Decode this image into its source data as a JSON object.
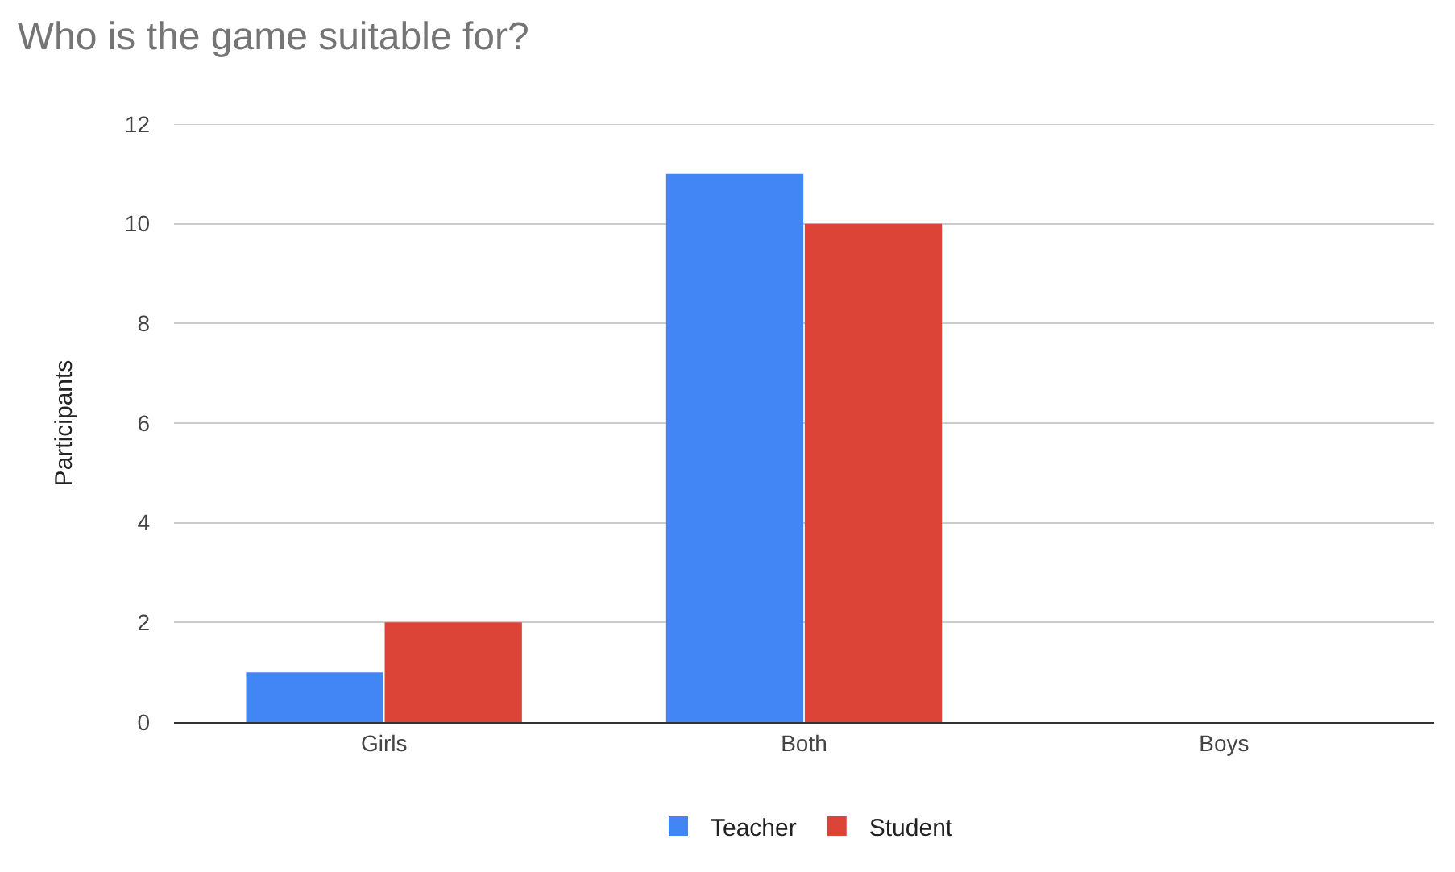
{
  "chart_data": {
    "type": "bar",
    "title": "Who is the game suitable for?",
    "ylabel": "Participants",
    "categories": [
      "Girls",
      "Both",
      "Boys"
    ],
    "series": [
      {
        "name": "Teacher",
        "color": "#4285f4",
        "values": [
          1,
          11,
          0
        ]
      },
      {
        "name": "Student",
        "color": "#db4437",
        "values": [
          2,
          10,
          0
        ]
      }
    ],
    "ylim": [
      0,
      12
    ],
    "yticks": [
      0,
      2,
      4,
      6,
      8,
      10,
      12
    ],
    "grid": "y",
    "legend": "bottom"
  }
}
